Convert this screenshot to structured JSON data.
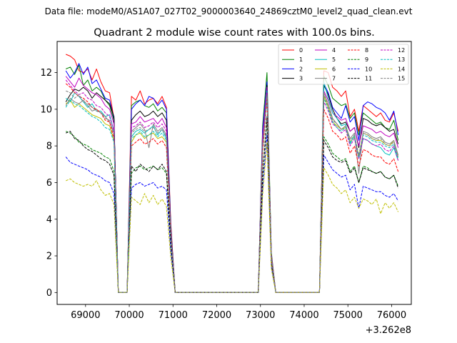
{
  "suptitle": "Data file: modeM0/AS1A07_027T02_9000003640_24869cztM0_level2_quad_clean.evt",
  "chart_data": {
    "type": "line",
    "title": "Quadrant 2 module wise count rates with 100.0s bins.",
    "xlabel": "",
    "ylabel": "",
    "x_offset_label": "+3.262e8",
    "xlim": [
      68350,
      76450
    ],
    "ylim": [
      -0.65,
      13.7
    ],
    "xticks": [
      69000,
      70000,
      71000,
      72000,
      73000,
      74000,
      75000,
      76000
    ],
    "yticks": [
      0,
      2,
      4,
      6,
      8,
      10,
      12
    ],
    "legend_position": "top-right",
    "grid": false,
    "x": [
      68550,
      68650,
      68750,
      68850,
      68950,
      69050,
      69150,
      69250,
      69350,
      69450,
      69550,
      69650,
      69750,
      69850,
      69950,
      70050,
      70150,
      70250,
      70350,
      70450,
      70550,
      70650,
      70750,
      70850,
      70950,
      71050,
      71150,
      72950,
      73050,
      73150,
      73250,
      73350,
      73450,
      74250,
      74350,
      74450,
      74550,
      74650,
      74750,
      74850,
      74950,
      75050,
      75150,
      75250,
      75350,
      75450,
      75550,
      75650,
      75750,
      75850,
      75950,
      76050,
      76150
    ],
    "series": [
      {
        "name": "0",
        "color": "#ff0000",
        "dash": "solid",
        "values": [
          13.0,
          12.9,
          12.7,
          12.1,
          12.0,
          12.2,
          11.6,
          12.2,
          11.5,
          11.0,
          10.9,
          9.5,
          0.0,
          0.0,
          0.0,
          10.7,
          10.5,
          11.0,
          10.3,
          10.5,
          10.6,
          10.3,
          10.7,
          10.1,
          3.8,
          0.0,
          0.0,
          0.0,
          8.9,
          11.0,
          2.0,
          0.0,
          0.0,
          0.0,
          0.0,
          12.1,
          12.0,
          11.2,
          11.0,
          10.7,
          11.0,
          9.6,
          10.0,
          8.8,
          10.2,
          10.0,
          9.8,
          9.6,
          9.8,
          9.4,
          9.3,
          9.8,
          8.8
        ]
      },
      {
        "name": "1",
        "color": "#008000",
        "dash": "solid",
        "values": [
          12.2,
          12.3,
          11.9,
          12.4,
          11.3,
          11.6,
          11.0,
          11.2,
          11.0,
          10.5,
          10.2,
          9.4,
          0.0,
          0.0,
          0.0,
          10.2,
          10.4,
          10.5,
          10.2,
          10.1,
          10.3,
          9.9,
          10.1,
          9.8,
          3.6,
          0.0,
          0.0,
          0.0,
          9.1,
          12.0,
          2.2,
          0.0,
          0.0,
          0.0,
          0.0,
          11.8,
          11.3,
          10.6,
          10.4,
          10.2,
          10.3,
          9.5,
          9.8,
          8.6,
          9.8,
          9.6,
          9.4,
          9.2,
          9.3,
          9.0,
          8.9,
          9.4,
          8.3
        ]
      },
      {
        "name": "2",
        "color": "#0000ff",
        "dash": "solid",
        "values": [
          12.1,
          11.7,
          12.0,
          12.5,
          11.9,
          12.3,
          11.4,
          11.6,
          11.1,
          10.6,
          10.5,
          9.5,
          0.0,
          0.0,
          0.0,
          10.0,
          10.3,
          10.5,
          10.2,
          10.7,
          10.6,
          10.2,
          10.5,
          10.0,
          3.6,
          0.0,
          0.0,
          0.0,
          8.8,
          11.5,
          1.9,
          0.0,
          0.0,
          0.0,
          0.0,
          11.4,
          10.9,
          10.1,
          9.8,
          9.5,
          10.2,
          9.3,
          9.6,
          8.3,
          10.2,
          10.4,
          10.3,
          10.1,
          10.0,
          9.8,
          9.4,
          9.9,
          8.6
        ]
      },
      {
        "name": "3",
        "color": "#000000",
        "dash": "solid",
        "values": [
          10.4,
          10.8,
          11.1,
          11.0,
          11.2,
          11.0,
          10.6,
          10.9,
          10.7,
          10.5,
          10.3,
          9.6,
          0.0,
          0.0,
          0.0,
          9.4,
          9.7,
          9.9,
          9.6,
          9.7,
          9.9,
          9.6,
          9.8,
          9.4,
          3.5,
          0.0,
          0.0,
          0.0,
          8.3,
          11.3,
          2.0,
          0.0,
          0.0,
          0.0,
          0.0,
          11.3,
          10.8,
          10.0,
          9.5,
          9.2,
          9.3,
          8.8,
          9.0,
          7.9,
          9.5,
          9.4,
          9.2,
          9.1,
          9.2,
          9.0,
          8.8,
          8.9,
          8.1
        ]
      },
      {
        "name": "4",
        "color": "#bf00bf",
        "dash": "solid",
        "values": [
          11.8,
          11.5,
          11.2,
          11.7,
          11.3,
          11.1,
          10.9,
          10.8,
          10.6,
          10.2,
          10.0,
          9.2,
          0.0,
          0.0,
          0.0,
          9.2,
          9.3,
          9.6,
          9.3,
          9.4,
          9.5,
          9.2,
          9.5,
          9.0,
          3.4,
          0.0,
          0.0,
          0.0,
          8.5,
          11.2,
          2.1,
          0.0,
          0.0,
          0.0,
          0.0,
          11.0,
          10.5,
          9.8,
          9.6,
          9.4,
          9.5,
          8.8,
          9.0,
          8.0,
          9.1,
          9.0,
          8.9,
          8.7,
          8.8,
          8.6,
          8.5,
          8.7,
          7.9
        ]
      },
      {
        "name": "5",
        "color": "#00bfbf",
        "dash": "solid",
        "values": [
          10.6,
          10.4,
          10.9,
          10.7,
          10.4,
          10.1,
          10.3,
          9.9,
          9.9,
          9.6,
          9.7,
          8.8,
          0.0,
          0.0,
          0.0,
          8.5,
          8.8,
          8.9,
          8.7,
          8.9,
          9.1,
          8.6,
          8.9,
          8.4,
          3.2,
          0.0,
          0.0,
          0.0,
          7.9,
          11.0,
          1.9,
          0.0,
          0.0,
          0.0,
          0.0,
          11.5,
          10.6,
          9.8,
          9.5,
          9.1,
          9.2,
          8.1,
          8.6,
          7.3,
          8.4,
          8.3,
          8.1,
          8.0,
          7.9,
          7.6,
          7.5,
          7.9,
          7.2
        ]
      },
      {
        "name": "6",
        "color": "#bfbf00",
        "dash": "solid",
        "values": [
          10.3,
          10.5,
          10.1,
          10.3,
          10.1,
          9.9,
          9.7,
          9.6,
          9.5,
          9.2,
          9.1,
          8.3,
          0.0,
          0.0,
          0.0,
          8.2,
          8.6,
          8.7,
          8.4,
          8.6,
          8.7,
          8.4,
          8.5,
          8.2,
          3.1,
          0.0,
          0.0,
          0.0,
          7.8,
          10.8,
          1.8,
          0.0,
          0.0,
          0.0,
          0.0,
          10.7,
          10.1,
          9.3,
          9.1,
          8.9,
          9.0,
          8.2,
          8.5,
          7.4,
          8.7,
          8.6,
          8.4,
          8.3,
          8.3,
          8.1,
          8.0,
          8.3,
          7.4
        ]
      },
      {
        "name": "7",
        "color": "#808080",
        "dash": "solid",
        "values": [
          10.2,
          10.6,
          10.4,
          10.3,
          10.5,
          10.2,
          9.9,
          10.0,
          9.8,
          9.6,
          9.3,
          8.7,
          0.0,
          0.0,
          0.0,
          8.8,
          9.0,
          9.2,
          8.9,
          7.9,
          9.2,
          8.8,
          9.0,
          8.6,
          3.3,
          0.0,
          0.0,
          0.0,
          8.1,
          10.9,
          2.0,
          0.0,
          0.0,
          0.0,
          0.0,
          10.9,
          10.3,
          9.5,
          9.2,
          8.9,
          9.1,
          8.4,
          8.7,
          6.5,
          8.8,
          8.7,
          8.5,
          8.4,
          8.5,
          8.2,
          8.1,
          8.3,
          7.5
        ]
      },
      {
        "name": "8",
        "color": "#ff0000",
        "dash": "dashed",
        "values": [
          11.4,
          11.2,
          10.9,
          10.7,
          10.6,
          10.4,
          10.1,
          10.0,
          9.8,
          9.4,
          9.3,
          8.4,
          0.0,
          0.0,
          0.0,
          8.0,
          8.2,
          8.4,
          8.1,
          8.2,
          8.4,
          8.1,
          8.3,
          7.9,
          3.0,
          0.0,
          0.0,
          0.0,
          7.6,
          10.6,
          1.8,
          0.0,
          0.0,
          0.0,
          0.0,
          10.0,
          9.5,
          8.8,
          8.6,
          8.3,
          8.5,
          7.6,
          8.0,
          6.9,
          7.8,
          7.7,
          7.5,
          7.4,
          7.4,
          7.1,
          7.0,
          7.3,
          6.6
        ]
      },
      {
        "name": "9",
        "color": "#008000",
        "dash": "dashed",
        "values": [
          8.8,
          8.7,
          8.5,
          8.2,
          8.1,
          8.0,
          7.8,
          7.7,
          7.6,
          7.4,
          7.3,
          6.6,
          0.0,
          0.0,
          0.0,
          6.5,
          6.8,
          6.9,
          6.7,
          6.8,
          6.9,
          6.7,
          6.8,
          6.5,
          2.6,
          0.0,
          0.0,
          0.0,
          6.3,
          9.4,
          1.6,
          0.0,
          0.0,
          0.0,
          0.0,
          8.5,
          8.1,
          7.6,
          7.4,
          7.2,
          7.3,
          6.6,
          6.9,
          6.0,
          6.9,
          6.8,
          6.6,
          6.5,
          6.6,
          6.3,
          6.2,
          6.4,
          5.8
        ]
      },
      {
        "name": "10",
        "color": "#0000ff",
        "dash": "dashed",
        "values": [
          7.4,
          7.1,
          7.0,
          6.9,
          6.8,
          6.7,
          6.5,
          6.4,
          6.3,
          6.1,
          6.0,
          5.4,
          0.0,
          0.0,
          0.0,
          5.7,
          5.9,
          6.0,
          5.8,
          5.9,
          6.0,
          5.7,
          5.8,
          5.6,
          2.3,
          0.0,
          0.0,
          0.0,
          5.6,
          8.6,
          1.4,
          0.0,
          0.0,
          0.0,
          0.0,
          7.5,
          7.1,
          6.7,
          6.5,
          6.3,
          6.4,
          5.6,
          5.9,
          4.6,
          5.8,
          5.7,
          5.6,
          5.5,
          5.5,
          5.3,
          5.2,
          5.4,
          5.0
        ]
      },
      {
        "name": "11",
        "color": "#000000",
        "dash": "dashed",
        "values": [
          8.7,
          8.8,
          8.4,
          8.3,
          8.0,
          7.8,
          7.7,
          7.5,
          7.3,
          7.2,
          7.0,
          6.4,
          0.0,
          0.0,
          0.0,
          6.9,
          6.6,
          7.0,
          6.8,
          6.6,
          6.9,
          6.7,
          7.0,
          6.6,
          2.7,
          0.0,
          0.0,
          0.0,
          6.4,
          9.6,
          1.7,
          0.0,
          0.0,
          0.0,
          0.0,
          8.3,
          7.9,
          7.4,
          7.2,
          7.1,
          7.2,
          6.5,
          6.8,
          6.0,
          6.8,
          6.7,
          6.6,
          6.5,
          6.6,
          6.3,
          6.2,
          6.4,
          5.7
        ]
      },
      {
        "name": "12",
        "color": "#bf00bf",
        "dash": "dashed",
        "values": [
          11.6,
          11.3,
          11.0,
          10.8,
          10.9,
          10.6,
          10.5,
          10.2,
          10.1,
          9.8,
          9.6,
          8.8,
          0.0,
          0.0,
          0.0,
          9.0,
          9.1,
          9.3,
          9.0,
          9.1,
          9.3,
          9.0,
          9.2,
          8.8,
          3.3,
          0.0,
          0.0,
          0.0,
          8.2,
          10.9,
          2.0,
          0.0,
          0.0,
          0.0,
          0.0,
          10.4,
          9.9,
          9.2,
          9.0,
          8.7,
          8.9,
          8.0,
          8.4,
          7.3,
          8.4,
          8.3,
          8.1,
          8.0,
          8.1,
          7.8,
          7.7,
          8.0,
          7.2
        ]
      },
      {
        "name": "13",
        "color": "#00bfbf",
        "dash": "dashed",
        "values": [
          10.1,
          10.5,
          10.3,
          10.2,
          10.0,
          9.8,
          9.6,
          9.5,
          9.3,
          9.0,
          8.9,
          8.2,
          0.0,
          0.0,
          0.0,
          8.4,
          8.6,
          8.8,
          8.5,
          8.6,
          8.8,
          8.5,
          8.7,
          8.3,
          3.1,
          0.0,
          0.0,
          0.0,
          7.9,
          10.7,
          1.9,
          0.0,
          0.0,
          0.0,
          0.0,
          10.6,
          10.0,
          9.3,
          9.0,
          8.8,
          9.0,
          8.2,
          8.5,
          7.4,
          8.6,
          8.5,
          8.3,
          8.2,
          8.2,
          8.0,
          7.9,
          8.1,
          7.3
        ]
      },
      {
        "name": "14",
        "color": "#bfbf00",
        "dash": "dashed",
        "values": [
          6.1,
          6.2,
          6.0,
          5.9,
          5.8,
          5.9,
          5.8,
          6.1,
          5.6,
          5.3,
          5.4,
          4.8,
          0.0,
          0.0,
          0.0,
          5.2,
          5.0,
          4.8,
          5.4,
          4.9,
          5.3,
          4.8,
          5.1,
          4.7,
          1.9,
          0.0,
          0.0,
          0.0,
          5.3,
          8.2,
          1.3,
          0.0,
          0.0,
          0.0,
          0.0,
          6.8,
          6.4,
          5.9,
          5.7,
          5.4,
          5.6,
          4.9,
          5.2,
          4.6,
          5.1,
          5.0,
          4.8,
          5.1,
          4.3,
          4.9,
          4.6,
          4.9,
          4.4
        ]
      },
      {
        "name": "15",
        "color": "#808080",
        "dash": "dashed",
        "values": [
          11.0,
          10.9,
          10.6,
          10.8,
          10.4,
          10.3,
          10.1,
          9.9,
          9.8,
          9.5,
          9.4,
          8.6,
          0.0,
          0.0,
          0.0,
          8.7,
          8.9,
          9.0,
          8.8,
          8.9,
          9.0,
          8.7,
          8.9,
          8.5,
          3.2,
          0.0,
          0.0,
          0.0,
          8.0,
          10.8,
          1.9,
          0.0,
          0.0,
          0.0,
          0.0,
          10.8,
          10.2,
          9.4,
          9.2,
          8.9,
          9.1,
          8.3,
          8.6,
          7.5,
          8.7,
          8.6,
          8.4,
          8.3,
          8.4,
          8.1,
          8.0,
          8.2,
          7.4
        ]
      }
    ]
  }
}
